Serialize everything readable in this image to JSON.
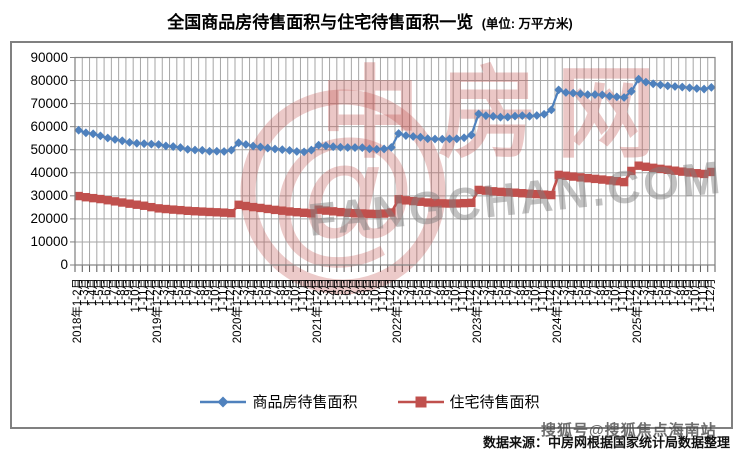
{
  "title": {
    "main": "全国商品房待售面积与住宅待售面积一览",
    "unit": "(单位: 万平方米)"
  },
  "footer": {
    "source": "数据来源：中房网根据国家统计局数据整理",
    "overlay": "搜狐号@搜狐焦点海南站"
  },
  "watermark": {
    "logo_text": "中房网",
    "logo_glyph": "@",
    "domain_text": "FANGCHAN.COM",
    "color": "#C0504D"
  },
  "colors": {
    "series_blue": "#4F81BD",
    "series_red": "#C0504D",
    "grid": "#A6A6A6",
    "axis": "#808080"
  },
  "chart_data": {
    "type": "line",
    "unit": "万平方米",
    "title": "全国商品房待售面积与住宅待售面积一览",
    "years": [
      2018,
      2019,
      2020,
      2021,
      2022,
      2023,
      2024,
      2025
    ],
    "month_labels": [
      "1-2月",
      "1-3月",
      "1-4月",
      "1-5月",
      "1-6月",
      "1-7月",
      "1-8月",
      "1-9月",
      "1-10月",
      "1-11月",
      "1-12月"
    ],
    "ylim": [
      0,
      90000
    ],
    "ytick_step": 10000,
    "y_ticks": [
      0,
      10000,
      20000,
      30000,
      40000,
      50000,
      60000,
      70000,
      80000,
      90000
    ],
    "grid": true,
    "legend_position": "bottom",
    "series": [
      {
        "name": "商品房待售面积",
        "color": "#4F81BD",
        "marker": "diamond",
        "values": [
          58468,
          57329,
          56898,
          56010,
          55083,
          54428,
          53873,
          53191,
          52789,
          52627,
          52414,
          52251,
          51646,
          51380,
          50928,
          50162,
          49876,
          49784,
          49346,
          49323,
          49221,
          49821,
          52991,
          52255,
          51587,
          51184,
          50718,
          50323,
          50052,
          49707,
          49239,
          49063,
          49850,
          51988,
          51692,
          51308,
          51086,
          50968,
          50941,
          50906,
          50385,
          50221,
          50344,
          51023,
          57026,
          56113,
          55735,
          55433,
          54784,
          54655,
          54605,
          54703,
          54734,
          55203,
          56366,
          65528,
          64770,
          64487,
          64120,
          64159,
          64564,
          64795,
          64537,
          64835,
          65385,
          67295,
          75969,
          74833,
          74553,
          74256,
          73894,
          73926,
          73783,
          73177,
          72909,
          72645,
          75327,
          80609,
          79315,
          78598,
          78126,
          77691,
          77432,
          77181,
          76885,
          76555,
          76313,
          77050
        ]
      },
      {
        "name": "住宅待售面积",
        "color": "#C0504D",
        "marker": "square",
        "values": [
          29900,
          29400,
          29000,
          28600,
          28100,
          27600,
          27100,
          26600,
          26150,
          25700,
          25091,
          24565,
          24272,
          24021,
          23787,
          23510,
          23320,
          23165,
          22998,
          22860,
          22715,
          22473,
          26111,
          25580,
          25110,
          24743,
          24318,
          23906,
          23560,
          23200,
          22900,
          22654,
          22379,
          23990,
          23592,
          23279,
          22930,
          22661,
          22472,
          22350,
          22222,
          22136,
          22307,
          22761,
          28519,
          28042,
          27716,
          27438,
          27094,
          26862,
          26729,
          26658,
          26694,
          26826,
          26947,
          32560,
          32254,
          31966,
          31720,
          31538,
          31359,
          31130,
          30921,
          30740,
          30520,
          30330,
          39088,
          38697,
          38350,
          38000,
          37650,
          37350,
          37050,
          36700,
          36350,
          35950,
          40803,
          43075,
          42600,
          42150,
          41700,
          41300,
          40900,
          40500,
          40150,
          39800,
          39500,
          40350
        ]
      }
    ]
  }
}
